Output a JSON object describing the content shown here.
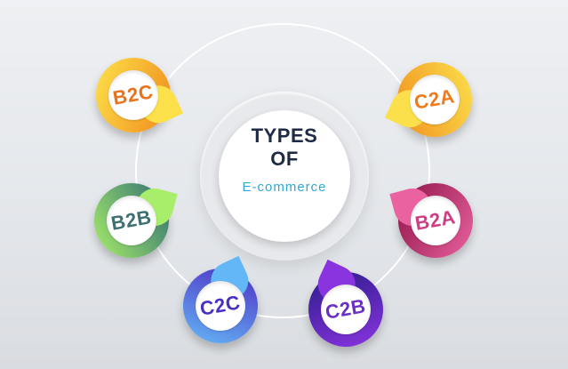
{
  "center": {
    "title_line1": "TYPES",
    "title_line2": "OF",
    "subtitle": "E-commerce"
  },
  "types": [
    {
      "label": "B2C",
      "text_color": "#e8731c",
      "gradient": [
        "#fde14a",
        "#f08a1c"
      ]
    },
    {
      "label": "C2A",
      "text_color": "#f07a1a",
      "gradient": [
        "#fbe04c",
        "#f1901f"
      ]
    },
    {
      "label": "B2B",
      "text_color": "#3e6f72",
      "gradient": [
        "#a8ee6a",
        "#2f6d74"
      ]
    },
    {
      "label": "B2A",
      "text_color": "#cf3d82",
      "gradient": [
        "#ea63a0",
        "#8c1246"
      ]
    },
    {
      "label": "C2C",
      "text_color": "#4a2fc4",
      "gradient": [
        "#63b7f6",
        "#4f2ec4"
      ]
    },
    {
      "label": "C2B",
      "text_color": "#6a30c6",
      "gradient": [
        "#8a34e0",
        "#2a1c8a"
      ]
    }
  ]
}
